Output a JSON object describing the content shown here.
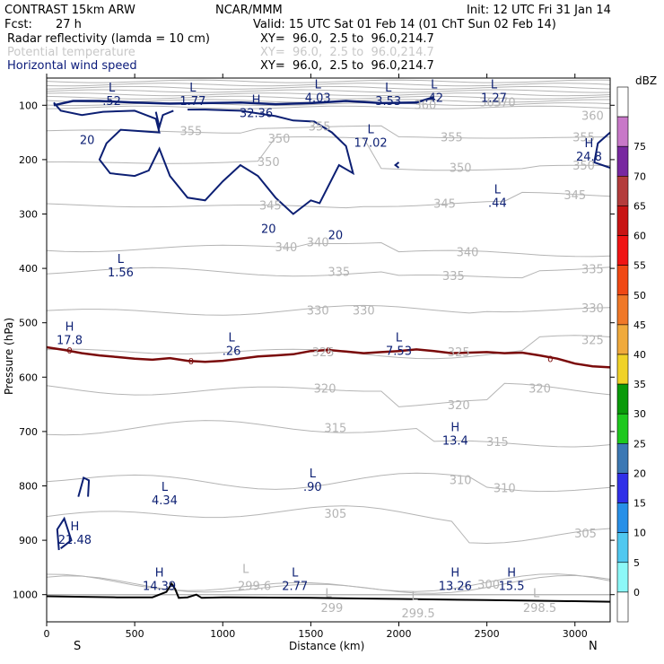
{
  "header": {
    "model": "CONTRAST 15km ARW",
    "org": "NCAR/MMM",
    "init": "Init: 12 UTC Fri 31 Jan 14",
    "fcst_label": "Fcst:",
    "fcst_value": "27 h",
    "valid": "Valid: 15 UTC Sat 01 Feb 14 (01 ChT Sun 02 Feb 14)",
    "fields": [
      {
        "name": "Radar reflectivity (lamda = 10 cm)",
        "xy": "XY=  96.0,  2.5 to  96.0,214.7",
        "color": "#000000"
      },
      {
        "name": "Potential temperature",
        "xy": "XY=  96.0,  2.5 to  96.0,214.7",
        "color": "#c8c8c8"
      },
      {
        "name": "Horizontal wind speed",
        "xy": "XY=  96.0,  2.5 to  96.0,214.7",
        "color": "#0a1a7a"
      }
    ]
  },
  "colors": {
    "theta": "#b4b4b4",
    "wind": "#0c1f73",
    "freezing": "#7a0a0a",
    "terrain": "#000000"
  },
  "chart_data": {
    "type": "contour cross-section",
    "xlabel": "Distance (km)",
    "ylabel": "Pressure (hPa)",
    "xlim": [
      0,
      3200
    ],
    "ylim": [
      1050,
      50
    ],
    "x_ticks": [
      0,
      500,
      1000,
      1500,
      2000,
      2500,
      3000
    ],
    "y_ticks": [
      100,
      200,
      300,
      400,
      500,
      600,
      700,
      800,
      900,
      1000
    ],
    "x_end_labels": {
      "left": "S",
      "right": "N"
    },
    "colorbar": {
      "unit": "dBZ",
      "levels": [
        0,
        5,
        10,
        15,
        20,
        25,
        30,
        35,
        40,
        45,
        50,
        55,
        60,
        65,
        70,
        75
      ],
      "colors": [
        "#ffffff",
        "#8cf8f8",
        "#50c8f0",
        "#2890e8",
        "#3030e8",
        "#3c78b4",
        "#1ec81e",
        "#0a9a0a",
        "#f0d228",
        "#f0aa3c",
        "#f07828",
        "#f04814",
        "#f01414",
        "#c81414",
        "#b43c3c",
        "#7828a0",
        "#c878c8",
        "#ffffff"
      ]
    },
    "theta_contours": [
      {
        "value": "370",
        "x": 2600,
        "p": 95
      },
      {
        "value": "365",
        "x": 2520,
        "p": 95
      },
      {
        "value": "360",
        "x": 2150,
        "p": 100
      },
      {
        "value": "360",
        "x": 3100,
        "p": 120
      },
      {
        "value": "355",
        "x": 820,
        "p": 148
      },
      {
        "value": "355",
        "x": 1550,
        "p": 140
      },
      {
        "value": "355",
        "x": 2300,
        "p": 160
      },
      {
        "value": "355",
        "x": 3050,
        "p": 160
      },
      {
        "value": "350",
        "x": 1320,
        "p": 162
      },
      {
        "value": "350",
        "x": 1260,
        "p": 205
      },
      {
        "value": "350",
        "x": 2350,
        "p": 216
      },
      {
        "value": "350",
        "x": 3050,
        "p": 212
      },
      {
        "value": "345",
        "x": 1270,
        "p": 285
      },
      {
        "value": "345",
        "x": 2260,
        "p": 282
      },
      {
        "value": "345",
        "x": 3000,
        "p": 266
      },
      {
        "value": "340",
        "x": 1360,
        "p": 362
      },
      {
        "value": "340",
        "x": 1540,
        "p": 353
      },
      {
        "value": "340",
        "x": 2390,
        "p": 371
      },
      {
        "value": "335",
        "x": 1660,
        "p": 407
      },
      {
        "value": "335",
        "x": 2310,
        "p": 415
      },
      {
        "value": "335",
        "x": 3100,
        "p": 402
      },
      {
        "value": "330",
        "x": 1540,
        "p": 478
      },
      {
        "value": "330",
        "x": 1800,
        "p": 478
      },
      {
        "value": "330",
        "x": 3100,
        "p": 474
      },
      {
        "value": "325",
        "x": 1570,
        "p": 555
      },
      {
        "value": "325",
        "x": 2340,
        "p": 555
      },
      {
        "value": "325",
        "x": 3100,
        "p": 533
      },
      {
        "value": "320",
        "x": 1580,
        "p": 622
      },
      {
        "value": "320",
        "x": 2340,
        "p": 652
      },
      {
        "value": "320",
        "x": 2800,
        "p": 622
      },
      {
        "value": "315",
        "x": 1640,
        "p": 694
      },
      {
        "value": "315",
        "x": 2560,
        "p": 720
      },
      {
        "value": "310",
        "x": 2350,
        "p": 790
      },
      {
        "value": "310",
        "x": 2600,
        "p": 805
      },
      {
        "value": "305",
        "x": 1640,
        "p": 852
      },
      {
        "value": "305",
        "x": 3060,
        "p": 888
      },
      {
        "value": "300",
        "x": 2510,
        "p": 982
      },
      {
        "value": "299.6",
        "x": 1180,
        "p": 985
      },
      {
        "value": "299",
        "x": 1620,
        "p": 1025
      },
      {
        "value": "299.5",
        "x": 2110,
        "p": 1035
      },
      {
        "value": "298.5",
        "x": 2800,
        "p": 1025
      }
    ],
    "theta_extrema": [
      {
        "type": "L",
        "value": "299.6",
        "x": 1130,
        "p": 960
      },
      {
        "type": "L",
        "value": "299",
        "x": 1600,
        "p": 1005
      },
      {
        "type": "L",
        "value": "299.5",
        "x": 2090,
        "p": 1010
      },
      {
        "type": "L",
        "value": "298.5",
        "x": 2780,
        "p": 1005
      }
    ],
    "wind_contours": [
      {
        "value": "20",
        "x": 230,
        "p": 165
      },
      {
        "value": "20",
        "x": 1260,
        "p": 328
      },
      {
        "value": "20",
        "x": 1640,
        "p": 340
      }
    ],
    "wind_extrema": [
      {
        "type": "L",
        "value": ".52",
        "x": 370,
        "p": 78
      },
      {
        "type": "L",
        "value": "1.77",
        "x": 830,
        "p": 78
      },
      {
        "type": "H",
        "value": "32.36",
        "x": 1190,
        "p": 100
      },
      {
        "type": "L",
        "value": "4.03",
        "x": 1540,
        "p": 72
      },
      {
        "type": "L",
        "value": "3.53",
        "x": 1940,
        "p": 78
      },
      {
        "type": "L",
        "value": ".42",
        "x": 2200,
        "p": 72
      },
      {
        "type": "L",
        "value": "1.27",
        "x": 2540,
        "p": 72
      },
      {
        "type": "L",
        "value": "17.02",
        "x": 1840,
        "p": 155
      },
      {
        "type": "H",
        "value": "24.8",
        "x": 3080,
        "p": 180
      },
      {
        "type": "L",
        "value": ".44",
        "x": 2560,
        "p": 265
      },
      {
        "type": "L",
        "value": "1.56",
        "x": 420,
        "p": 393
      },
      {
        "type": "H",
        "value": "17.8",
        "x": 130,
        "p": 518
      },
      {
        "type": "L",
        "value": ".26",
        "x": 1050,
        "p": 538
      },
      {
        "type": "L",
        "value": "7.53",
        "x": 2000,
        "p": 538
      },
      {
        "type": "H",
        "value": "13.4",
        "x": 2320,
        "p": 703
      },
      {
        "type": "L",
        "value": ".90",
        "x": 1510,
        "p": 788
      },
      {
        "type": "L",
        "value": "4.34",
        "x": 670,
        "p": 812
      },
      {
        "type": "H",
        "value": "21.48",
        "x": 160,
        "p": 885
      },
      {
        "type": "H",
        "value": "14.39",
        "x": 640,
        "p": 970
      },
      {
        "type": "L",
        "value": "2.77",
        "x": 1410,
        "p": 970
      },
      {
        "type": "H",
        "value": "13.26",
        "x": 2320,
        "p": 970
      },
      {
        "type": "H",
        "value": "15.5",
        "x": 2640,
        "p": 970
      }
    ],
    "freezing_level": {
      "label": "0",
      "points": [
        [
          0,
          545
        ],
        [
          100,
          550
        ],
        [
          200,
          556
        ],
        [
          300,
          560
        ],
        [
          400,
          563
        ],
        [
          500,
          566
        ],
        [
          600,
          568
        ],
        [
          700,
          565
        ],
        [
          800,
          570
        ],
        [
          900,
          572
        ],
        [
          1000,
          570
        ],
        [
          1100,
          566
        ],
        [
          1200,
          562
        ],
        [
          1300,
          560
        ],
        [
          1400,
          558
        ],
        [
          1500,
          552
        ],
        [
          1600,
          550
        ],
        [
          1700,
          553
        ],
        [
          1800,
          556
        ],
        [
          1900,
          554
        ],
        [
          2000,
          552
        ],
        [
          2100,
          549
        ],
        [
          2200,
          552
        ],
        [
          2300,
          556
        ],
        [
          2400,
          555
        ],
        [
          2500,
          554
        ],
        [
          2600,
          556
        ],
        [
          2700,
          555
        ],
        [
          2800,
          560
        ],
        [
          2900,
          566
        ],
        [
          3000,
          575
        ],
        [
          3100,
          580
        ],
        [
          3200,
          582
        ]
      ],
      "label_x": [
        130,
        820,
        1600,
        2860
      ]
    },
    "terrain": {
      "points": [
        [
          0,
          1003
        ],
        [
          200,
          1004
        ],
        [
          400,
          1005
        ],
        [
          600,
          1005
        ],
        [
          680,
          995
        ],
        [
          710,
          980
        ],
        [
          730,
          990
        ],
        [
          750,
          1006
        ],
        [
          800,
          1005
        ],
        [
          850,
          1000
        ],
        [
          880,
          1006
        ],
        [
          1000,
          1005
        ],
        [
          1500,
          1006
        ],
        [
          2000,
          1008
        ],
        [
          2500,
          1010
        ],
        [
          3000,
          1012
        ],
        [
          3200,
          1013
        ]
      ]
    }
  }
}
